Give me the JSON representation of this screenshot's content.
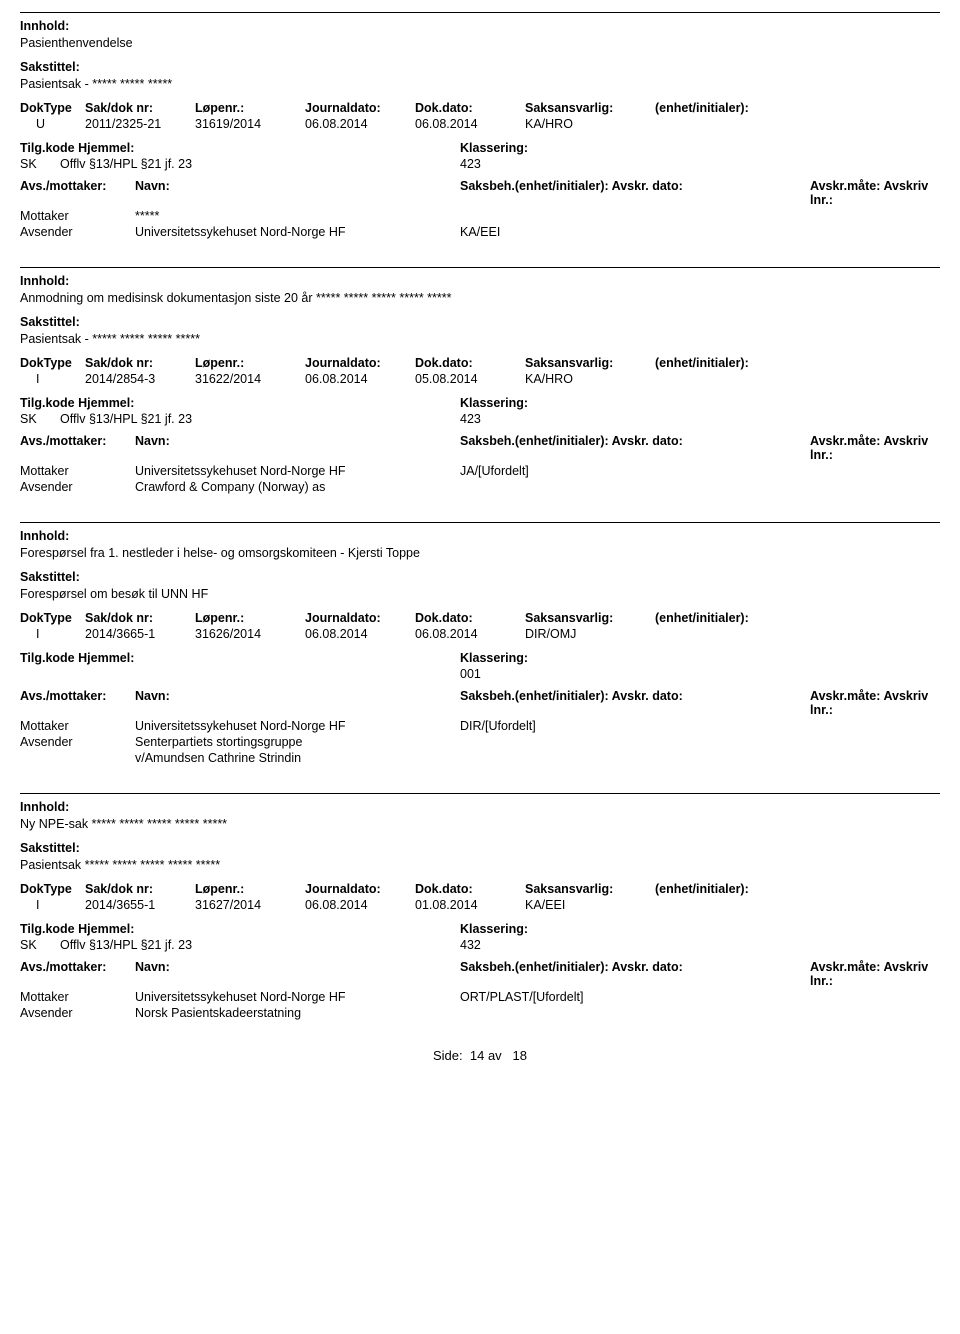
{
  "labels": {
    "innhold": "Innhold:",
    "sakstittel": "Sakstittel:",
    "doktype": "DokType",
    "sakdok": "Sak/dok nr:",
    "lopenr": "Løpenr.:",
    "journaldato": "Journaldato:",
    "dokdato": "Dok.dato:",
    "saksansvarlig": "Saksansvarlig:",
    "enhet": "(enhet/initialer):",
    "tilg": "Tilg.kode",
    "hjemmel": "Hjemmel:",
    "klassering": "Klassering:",
    "avsmottaker": "Avs./mottaker:",
    "navn": "Navn:",
    "saksbeh": "Saksbeh.(enhet/initialer):",
    "avskrdato": "Avskr. dato:",
    "avskrmate": "Avskr.måte:",
    "avskrivlnr": "Avskriv lnr.:",
    "mottaker": "Mottaker",
    "avsender": "Avsender",
    "side": "Side:",
    "av": "av"
  },
  "entries": [
    {
      "innhold": "Pasienthenvendelse",
      "sakstittel": "Pasientsak - ***** ***** *****",
      "doktype": "U",
      "sakdok": "2011/2325-21",
      "lopenr": "31619/2014",
      "journaldato": "06.08.2014",
      "dokdato": "06.08.2014",
      "saksansvarlig": "KA/HRO",
      "tilg": "SK",
      "hjemmel": "Offlv §13/HPL §21 jf. 23",
      "klassering": "423",
      "mottaker_name": "*****",
      "mottaker_beh": "",
      "avsender_name": "Universitetssykehuset Nord-Norge HF",
      "avsender_beh": "KA/EEI",
      "avsender_name2": ""
    },
    {
      "innhold": "Anmodning om medisinsk dokumentasjon siste 20 år ***** ***** ***** ***** *****",
      "sakstittel": "Pasientsak - ***** ***** ***** *****",
      "doktype": "I",
      "sakdok": "2014/2854-3",
      "lopenr": "31622/2014",
      "journaldato": "06.08.2014",
      "dokdato": "05.08.2014",
      "saksansvarlig": "KA/HRO",
      "tilg": "SK",
      "hjemmel": "Offlv §13/HPL §21 jf. 23",
      "klassering": "423",
      "mottaker_name": "Universitetssykehuset Nord-Norge HF",
      "mottaker_beh": "JA/[Ufordelt]",
      "avsender_name": "Crawford & Company (Norway) as",
      "avsender_beh": "",
      "avsender_name2": ""
    },
    {
      "innhold": "Forespørsel fra 1. nestleder i helse- og omsorgskomiteen - Kjersti Toppe",
      "sakstittel": "Forespørsel om besøk til UNN HF",
      "doktype": "I",
      "sakdok": "2014/3665-1",
      "lopenr": "31626/2014",
      "journaldato": "06.08.2014",
      "dokdato": "06.08.2014",
      "saksansvarlig": "DIR/OMJ",
      "tilg": "",
      "hjemmel": "",
      "klassering": "001",
      "mottaker_name": "Universitetssykehuset Nord-Norge HF",
      "mottaker_beh": "DIR/[Ufordelt]",
      "avsender_name": "Senterpartiets stortingsgruppe",
      "avsender_beh": "",
      "avsender_name2": "v/Amundsen Cathrine Strindin"
    },
    {
      "innhold": "Ny NPE-sak ***** ***** ***** ***** *****",
      "sakstittel": "Pasientsak ***** ***** ***** ***** *****",
      "doktype": "I",
      "sakdok": "2014/3655-1",
      "lopenr": "31627/2014",
      "journaldato": "06.08.2014",
      "dokdato": "01.08.2014",
      "saksansvarlig": "KA/EEI",
      "tilg": "SK",
      "hjemmel": "Offlv §13/HPL §21 jf. 23",
      "klassering": "432",
      "mottaker_name": "Universitetssykehuset Nord-Norge HF",
      "mottaker_beh": "ORT/PLAST/[Ufordelt]",
      "avsender_name": "Norsk Pasientskadeerstatning",
      "avsender_beh": "",
      "avsender_name2": ""
    }
  ],
  "footer": {
    "page": "14",
    "total": "18"
  }
}
